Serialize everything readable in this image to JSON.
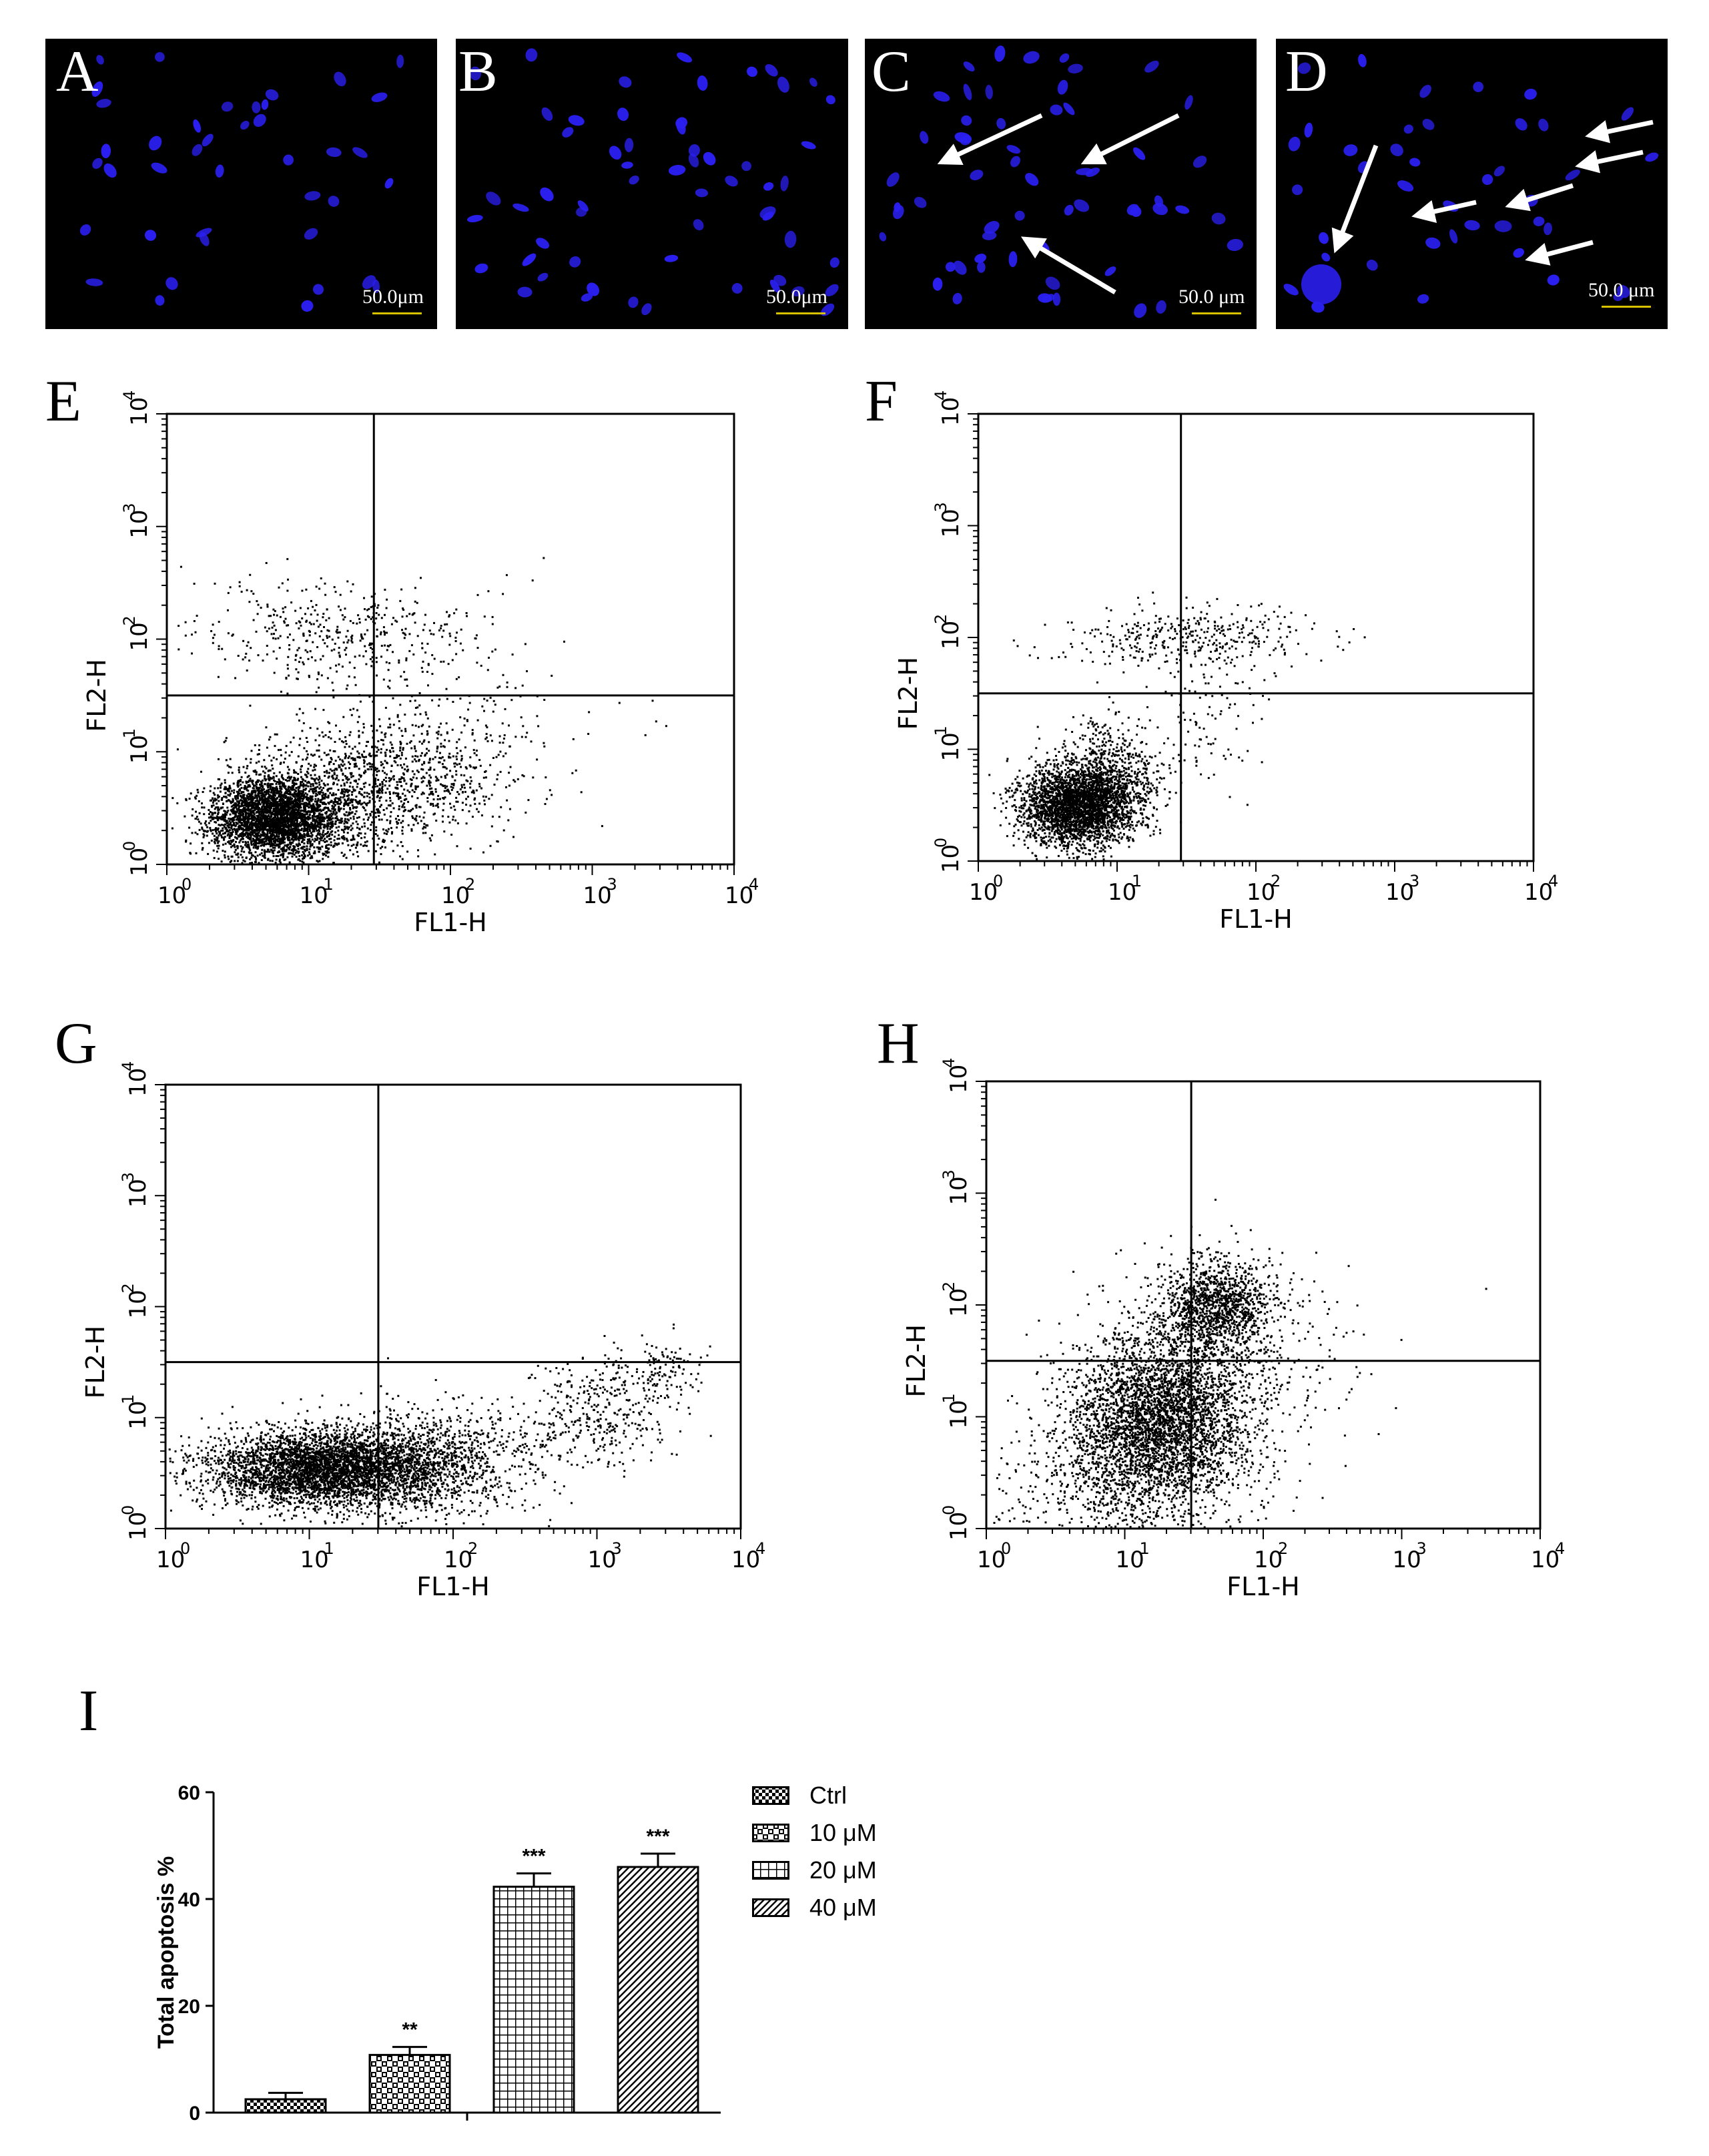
{
  "colors": {
    "background": "#ffffff",
    "nuclei": "#2a1ff0",
    "scale_bar": "#d8c200",
    "dots": "#000000"
  },
  "microscopy": [
    {
      "letter": "A",
      "scale": "50.0μm",
      "nuclei_density": "low",
      "arrows": false
    },
    {
      "letter": "B",
      "scale": "50.0μm",
      "nuclei_density": "medium",
      "arrows": false
    },
    {
      "letter": "C",
      "scale": "50.0 μm",
      "nuclei_density": "medium",
      "arrows": true
    },
    {
      "letter": "D",
      "scale": "50.0 μm",
      "nuclei_density": "low",
      "arrows": true
    }
  ],
  "flow_panels": [
    {
      "letter": "E",
      "xlabel": "FL1-H",
      "ylabel": "FL2-H"
    },
    {
      "letter": "F",
      "xlabel": "FL1-H",
      "ylabel": "FL2-H"
    },
    {
      "letter": "G",
      "xlabel": "FL1-H",
      "ylabel": "FL2-H"
    },
    {
      "letter": "H",
      "xlabel": "FL1-H",
      "ylabel": "FL2-H"
    }
  ],
  "flow_ticks": {
    "base": "10",
    "exponents": [
      "0",
      "1",
      "2",
      "3",
      "4"
    ]
  },
  "bar_panel": {
    "letter": "I"
  },
  "chart_data": [
    {
      "type": "bar",
      "ylabel": "Total apoptosis %",
      "ylim": [
        0,
        60
      ],
      "yticks": [
        "0",
        "20",
        "40",
        "60"
      ],
      "categories": [
        "Ctrl",
        "10 μM",
        "20 μM",
        "40 μM"
      ],
      "values": [
        2.5,
        10.8,
        42.3,
        46
      ],
      "errors": [
        1.2,
        1.5,
        2.5,
        2.5
      ],
      "significance": [
        "",
        "**",
        "***",
        "***"
      ],
      "legend_position": "right",
      "patterns": [
        "checker-fine",
        "checker-coarse",
        "grid",
        "diagonal"
      ]
    }
  ]
}
